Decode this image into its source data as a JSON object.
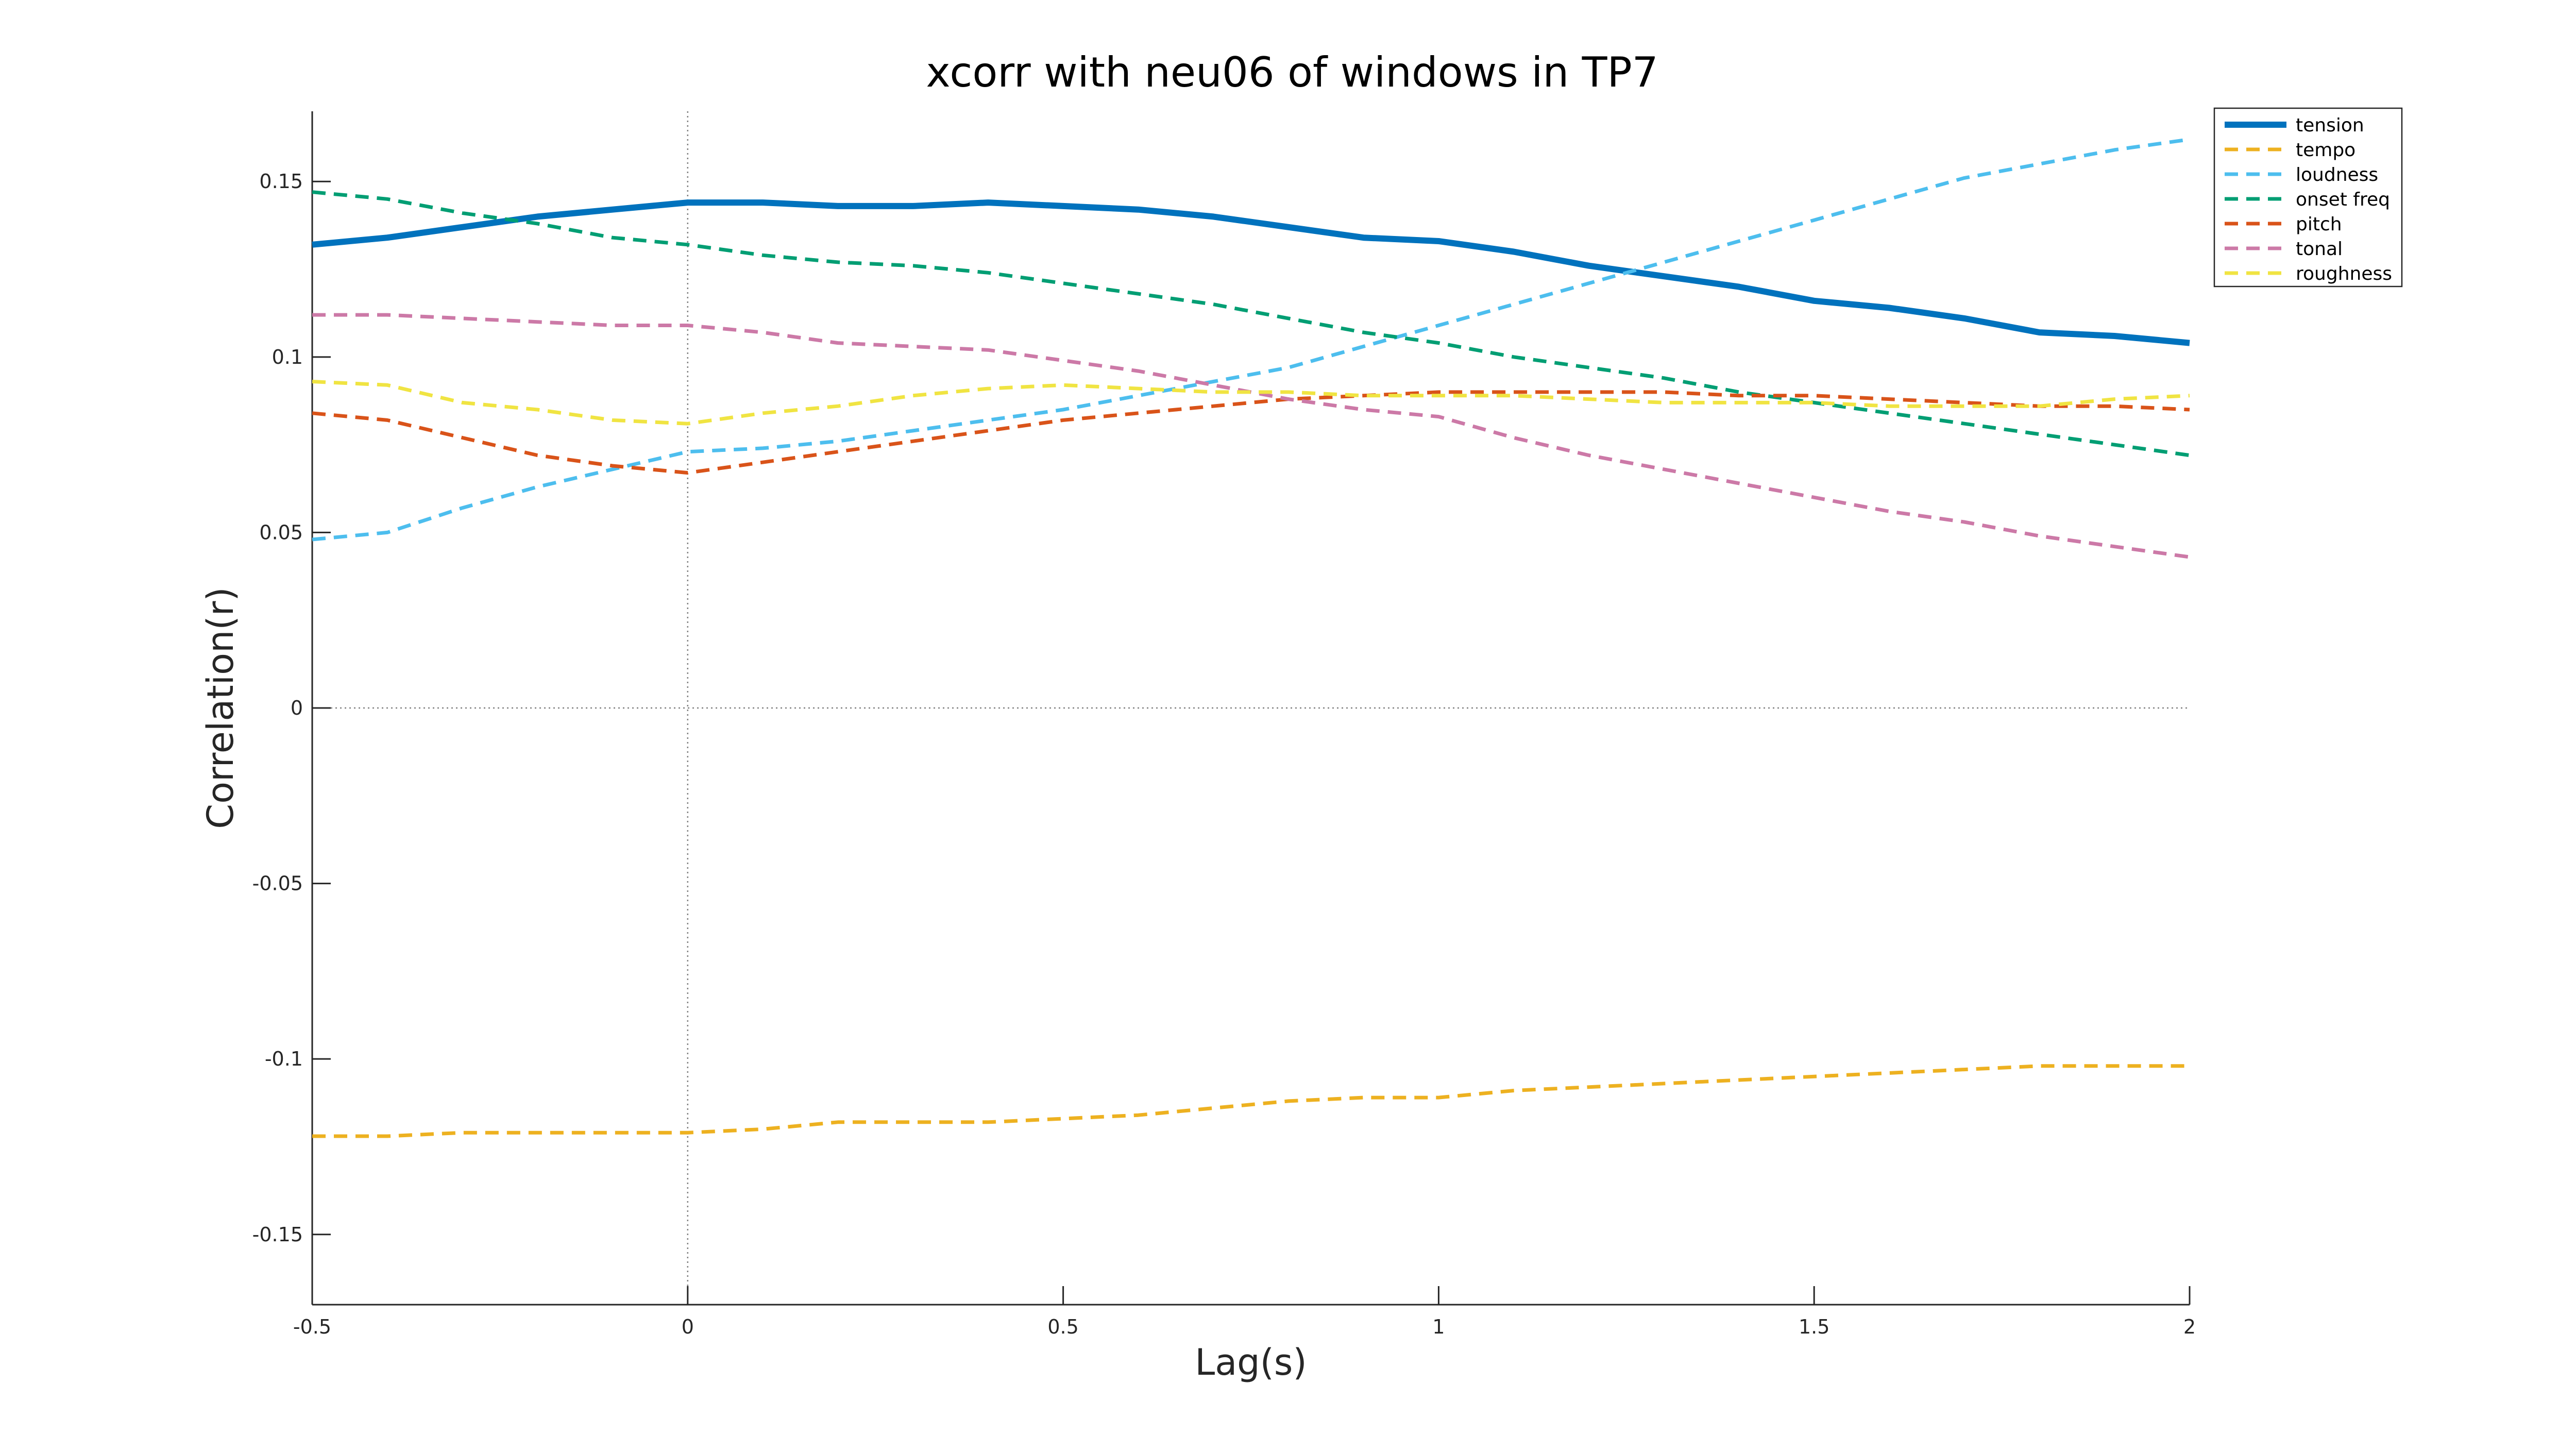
{
  "chart_data": {
    "type": "line",
    "title": "xcorr with neu06 of windows in TP7",
    "xlabel": "Lag(s)",
    "ylabel": "Correlation(r)",
    "xlim": [
      -0.5,
      2
    ],
    "ylim": [
      -0.17,
      0.17
    ],
    "xticks": [
      -0.5,
      0,
      0.5,
      1,
      1.5,
      2
    ],
    "xtick_labels": [
      "-0.5",
      "0",
      "0.5",
      "1",
      "1.5",
      "2"
    ],
    "yticks": [
      -0.15,
      -0.1,
      -0.05,
      0,
      0.05,
      0.1,
      0.15
    ],
    "ytick_labels": [
      "-0.15",
      "-0.1",
      "-0.05",
      "0",
      "0.05",
      "0.1",
      "0.15"
    ],
    "grid": false,
    "reference_lines": {
      "x": 0,
      "y": 0,
      "style": "dotted"
    },
    "legend_position": "top-right",
    "x": [
      -0.5,
      -0.4,
      -0.3,
      -0.2,
      -0.1,
      0,
      0.1,
      0.2,
      0.3,
      0.4,
      0.5,
      0.6,
      0.7,
      0.8,
      0.9,
      1.0,
      1.1,
      1.2,
      1.3,
      1.4,
      1.5,
      1.6,
      1.7,
      1.8,
      1.9,
      2.0
    ],
    "series": [
      {
        "name": "tension",
        "color": "#0072BD",
        "style": "solid",
        "values": [
          0.132,
          0.134,
          0.137,
          0.14,
          0.142,
          0.144,
          0.144,
          0.143,
          0.143,
          0.144,
          0.143,
          0.142,
          0.14,
          0.137,
          0.134,
          0.133,
          0.13,
          0.126,
          0.123,
          0.12,
          0.116,
          0.114,
          0.111,
          0.107,
          0.106,
          0.104
        ]
      },
      {
        "name": "tempo",
        "color": "#EDB120",
        "style": "dashed",
        "values": [
          -0.122,
          -0.122,
          -0.121,
          -0.121,
          -0.121,
          -0.121,
          -0.12,
          -0.118,
          -0.118,
          -0.118,
          -0.117,
          -0.116,
          -0.114,
          -0.112,
          -0.111,
          -0.111,
          -0.109,
          -0.108,
          -0.107,
          -0.106,
          -0.105,
          -0.104,
          -0.103,
          -0.102,
          -0.102,
          -0.102
        ]
      },
      {
        "name": "loudness",
        "color": "#4DBEEE",
        "style": "dashed",
        "values": [
          0.048,
          0.05,
          0.057,
          0.063,
          0.068,
          0.073,
          0.074,
          0.076,
          0.079,
          0.082,
          0.085,
          0.089,
          0.093,
          0.097,
          0.103,
          0.109,
          0.115,
          0.121,
          0.127,
          0.133,
          0.139,
          0.145,
          0.151,
          0.155,
          0.159,
          0.162
        ]
      },
      {
        "name": "onset freq",
        "color": "#009E73",
        "style": "dashed",
        "values": [
          0.147,
          0.145,
          0.141,
          0.138,
          0.134,
          0.132,
          0.129,
          0.127,
          0.126,
          0.124,
          0.121,
          0.118,
          0.115,
          0.111,
          0.107,
          0.104,
          0.1,
          0.097,
          0.094,
          0.09,
          0.087,
          0.084,
          0.081,
          0.078,
          0.075,
          0.072
        ]
      },
      {
        "name": "pitch",
        "color": "#D95319",
        "style": "dashed",
        "values": [
          0.084,
          0.082,
          0.077,
          0.072,
          0.069,
          0.067,
          0.07,
          0.073,
          0.076,
          0.079,
          0.082,
          0.084,
          0.086,
          0.088,
          0.089,
          0.09,
          0.09,
          0.09,
          0.09,
          0.089,
          0.089,
          0.088,
          0.087,
          0.086,
          0.086,
          0.085
        ]
      },
      {
        "name": "tonal",
        "color": "#CC79A7",
        "style": "dashed",
        "values": [
          0.112,
          0.112,
          0.111,
          0.11,
          0.109,
          0.109,
          0.107,
          0.104,
          0.103,
          0.102,
          0.099,
          0.096,
          0.092,
          0.088,
          0.085,
          0.083,
          0.077,
          0.072,
          0.068,
          0.064,
          0.06,
          0.056,
          0.053,
          0.049,
          0.046,
          0.043
        ]
      },
      {
        "name": "roughness",
        "color": "#F0E442",
        "style": "dashed",
        "values": [
          0.093,
          0.092,
          0.087,
          0.085,
          0.082,
          0.081,
          0.084,
          0.086,
          0.089,
          0.091,
          0.092,
          0.091,
          0.09,
          0.09,
          0.089,
          0.089,
          0.089,
          0.088,
          0.087,
          0.087,
          0.087,
          0.086,
          0.086,
          0.086,
          0.088,
          0.089
        ]
      }
    ]
  }
}
